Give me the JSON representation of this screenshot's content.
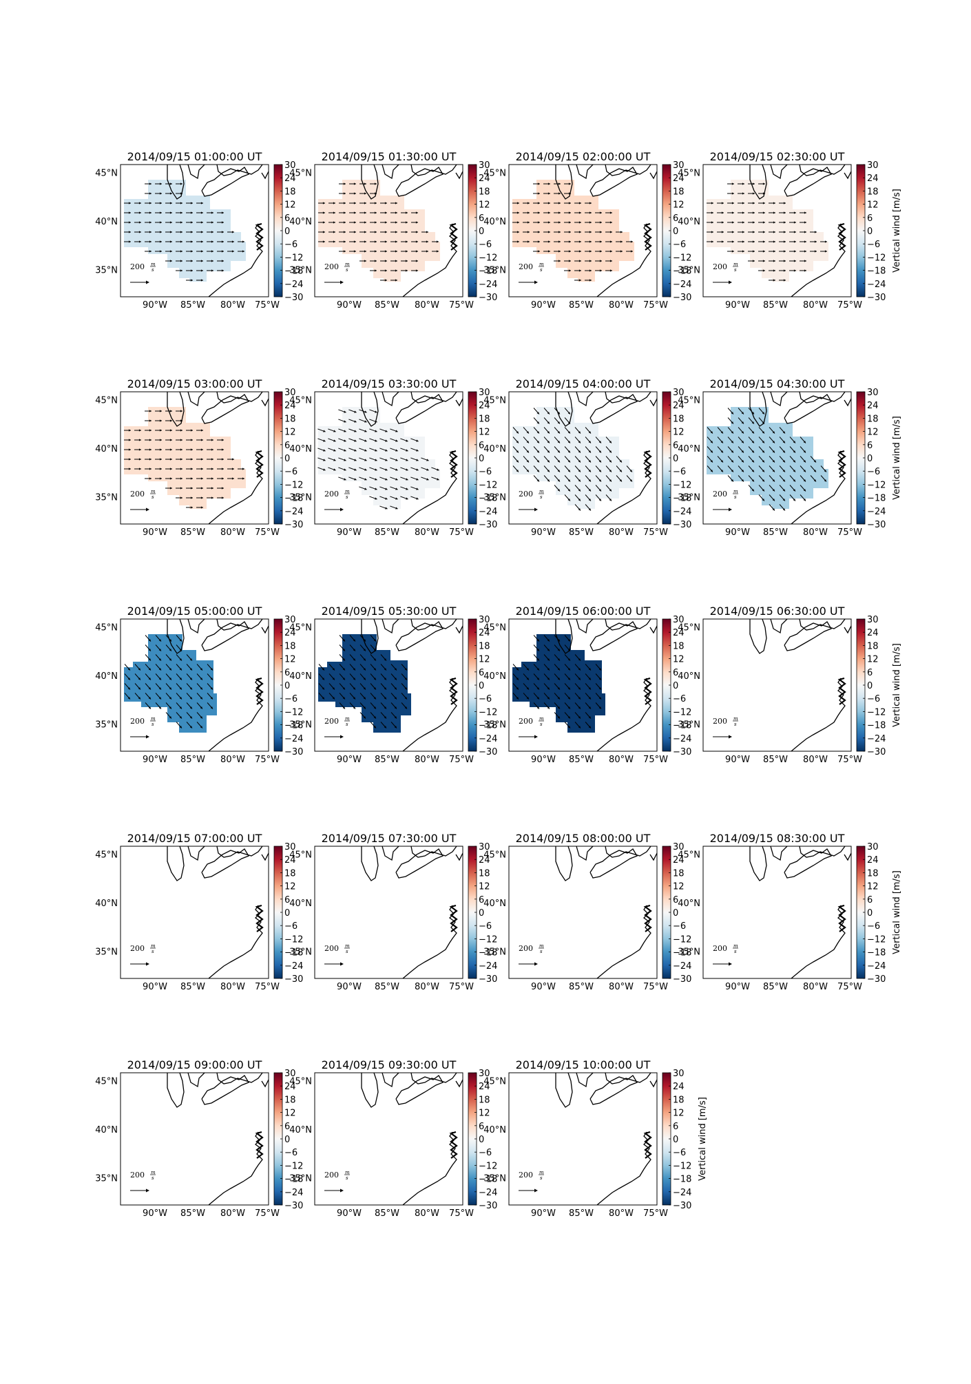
{
  "figure": {
    "wind_scale_label": "200",
    "wind_scale_unit_num": "m",
    "wind_scale_unit_den": "s",
    "colorbar_label": "Vertical wind [m/s]",
    "colorbar_ticks": [
      "30",
      "24",
      "18",
      "12",
      "6",
      "0",
      "−6",
      "−12",
      "−18",
      "−24",
      "−30"
    ],
    "lon_ticks": [
      "90°W",
      "85°W",
      "80°W",
      "75°W"
    ],
    "lat_ticks": [
      "45°N",
      "40°N",
      "35°N"
    ],
    "colors": {
      "colormap": [
        "#053061",
        "#2166ac",
        "#4393c3",
        "#92c5de",
        "#d1e5f0",
        "#f7f7f7",
        "#fddbc7",
        "#f4a582",
        "#d6604d",
        "#b2182b",
        "#67001f"
      ]
    }
  },
  "chart_data": [
    {
      "type": "heatmap",
      "title": "2014/09/15 01:00:00 UT",
      "vertical_wind": -6,
      "region": "full",
      "wind_arrows": true,
      "arrow_direction": "east"
    },
    {
      "type": "heatmap",
      "title": "2014/09/15 01:30:00 UT",
      "vertical_wind": 4,
      "region": "full",
      "wind_arrows": true,
      "arrow_direction": "east"
    },
    {
      "type": "heatmap",
      "title": "2014/09/15 02:00:00 UT",
      "vertical_wind": 6,
      "region": "full",
      "wind_arrows": true,
      "arrow_direction": "east"
    },
    {
      "type": "heatmap",
      "title": "2014/09/15 02:30:00 UT",
      "vertical_wind": 2,
      "region": "full",
      "wind_arrows": true,
      "arrow_direction": "east"
    },
    {
      "type": "heatmap",
      "title": "2014/09/15 03:00:00 UT",
      "vertical_wind": 5,
      "region": "full",
      "wind_arrows": true,
      "arrow_direction": "east"
    },
    {
      "type": "heatmap",
      "title": "2014/09/15 03:30:00 UT",
      "vertical_wind": -1,
      "region": "full",
      "wind_arrows": true,
      "arrow_direction": "east-southeast"
    },
    {
      "type": "heatmap",
      "title": "2014/09/15 04:00:00 UT",
      "vertical_wind": -2,
      "region": "full",
      "wind_arrows": true,
      "arrow_direction": "southeast"
    },
    {
      "type": "heatmap",
      "title": "2014/09/15 04:30:00 UT",
      "vertical_wind": -10,
      "region": "full",
      "wind_arrows": true,
      "arrow_direction": "southeast"
    },
    {
      "type": "heatmap",
      "title": "2014/09/15 05:00:00 UT",
      "vertical_wind": -19,
      "region": "west",
      "wind_arrows": true,
      "arrow_direction": "southeast"
    },
    {
      "type": "heatmap",
      "title": "2014/09/15 05:30:00 UT",
      "vertical_wind": -28,
      "region": "west",
      "wind_arrows": true,
      "arrow_direction": "southeast"
    },
    {
      "type": "heatmap",
      "title": "2014/09/15 06:00:00 UT",
      "vertical_wind": -29,
      "region": "west",
      "wind_arrows": true,
      "arrow_direction": "southeast"
    },
    {
      "type": "heatmap",
      "title": "2014/09/15 06:30:00 UT",
      "vertical_wind": null,
      "region": "none",
      "wind_arrows": false
    },
    {
      "type": "heatmap",
      "title": "2014/09/15 07:00:00 UT",
      "vertical_wind": null,
      "region": "none",
      "wind_arrows": false
    },
    {
      "type": "heatmap",
      "title": "2014/09/15 07:30:00 UT",
      "vertical_wind": null,
      "region": "none",
      "wind_arrows": false
    },
    {
      "type": "heatmap",
      "title": "2014/09/15 08:00:00 UT",
      "vertical_wind": null,
      "region": "none",
      "wind_arrows": false
    },
    {
      "type": "heatmap",
      "title": "2014/09/15 08:30:00 UT",
      "vertical_wind": null,
      "region": "none",
      "wind_arrows": false
    },
    {
      "type": "heatmap",
      "title": "2014/09/15 09:00:00 UT",
      "vertical_wind": null,
      "region": "none",
      "wind_arrows": false
    },
    {
      "type": "heatmap",
      "title": "2014/09/15 09:30:00 UT",
      "vertical_wind": null,
      "region": "none",
      "wind_arrows": false
    },
    {
      "type": "heatmap",
      "title": "2014/09/15 10:00:00 UT",
      "vertical_wind": null,
      "region": "none",
      "wind_arrows": false
    }
  ]
}
